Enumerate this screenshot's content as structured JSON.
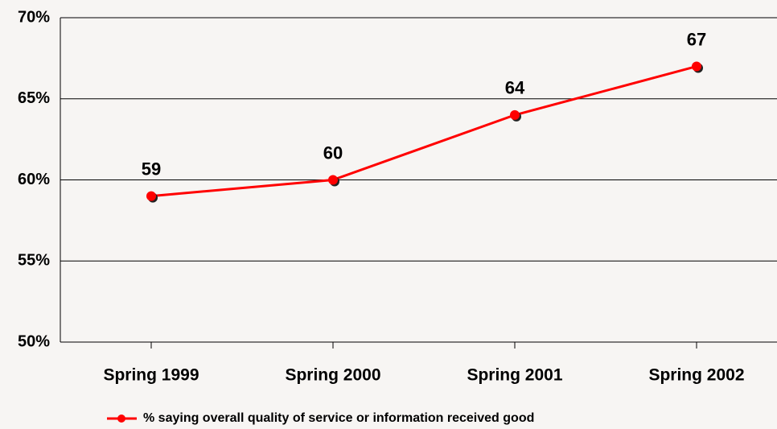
{
  "chart_data": {
    "type": "line",
    "categories": [
      "Spring 1999",
      "Spring 2000",
      "Spring 2001",
      "Spring 2002"
    ],
    "series": [
      {
        "name": "% saying overall quality of service or information received good",
        "color": "#ff0000",
        "values": [
          59,
          60,
          64,
          67
        ]
      }
    ],
    "ylim": [
      50,
      70
    ],
    "yticks": [
      {
        "value": 50,
        "label": "50%"
      },
      {
        "value": 55,
        "label": "55%"
      },
      {
        "value": 60,
        "label": "60%"
      },
      {
        "value": 65,
        "label": "65%"
      },
      {
        "value": 70,
        "label": "70%"
      }
    ],
    "grid": true,
    "legend": "bottom"
  }
}
